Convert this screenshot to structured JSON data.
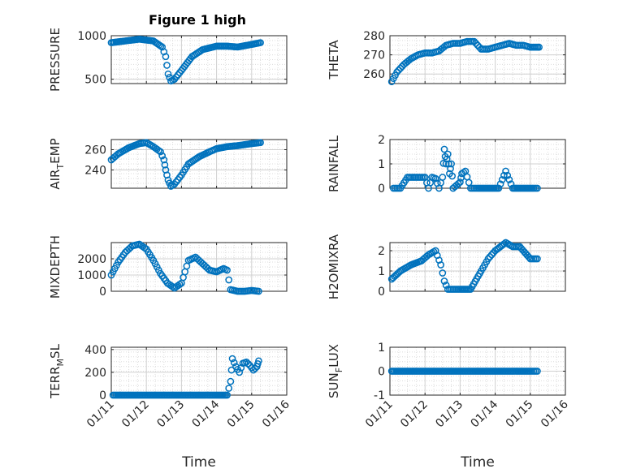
{
  "figure": {
    "title": "Figure 1 high"
  },
  "style": {
    "marker_color": "#0072bd",
    "axis_color": "#262626",
    "grid_color": "#dcdcdc"
  },
  "chart_data": [
    {
      "type": "scatter",
      "id": "pressure",
      "ylabel": "PRESSURE",
      "xlabel": "",
      "xlim": [
        "01/11",
        "01/16"
      ],
      "ylim": [
        450,
        1000
      ],
      "yticks": [
        500,
        1000
      ],
      "ytick_labels": [
        "500",
        "1000"
      ],
      "xticks": [
        "01/11",
        "01/12",
        "01/13",
        "01/14",
        "01/15",
        "01/16"
      ],
      "grid": true,
      "x": [
        11.0,
        11.8,
        12.2,
        12.45,
        12.55,
        12.62,
        12.7,
        12.8,
        13.0,
        13.3,
        13.6,
        14.0,
        14.3,
        14.6,
        15.0,
        15.25
      ],
      "y": [
        920,
        960,
        940,
        870,
        760,
        560,
        480,
        500,
        600,
        760,
        840,
        880,
        880,
        870,
        900,
        920
      ]
    },
    {
      "type": "scatter",
      "id": "theta",
      "ylabel": "THETA",
      "xlabel": "",
      "xlim": [
        "01/11",
        "01/16"
      ],
      "ylim": [
        255,
        280
      ],
      "yticks": [
        260,
        270,
        280
      ],
      "ytick_labels": [
        "260",
        "270",
        "280"
      ],
      "xticks": [
        "01/11",
        "01/12",
        "01/13",
        "01/14",
        "01/15",
        "01/16"
      ],
      "grid": true,
      "x": [
        11.05,
        11.2,
        11.4,
        11.6,
        11.8,
        12.0,
        12.2,
        12.4,
        12.6,
        12.8,
        13.0,
        13.2,
        13.4,
        13.6,
        13.8,
        14.0,
        14.2,
        14.4,
        14.6,
        14.8,
        15.0,
        15.25
      ],
      "y": [
        256,
        261,
        265,
        268,
        270,
        271,
        271,
        272,
        275,
        276,
        276,
        277,
        277,
        273,
        273,
        274,
        275,
        276,
        275,
        275,
        274,
        274
      ]
    },
    {
      "type": "scatter",
      "id": "air-temp",
      "ylabel": "AIR_TEMP",
      "xlabel": "",
      "xlim": [
        "01/11",
        "01/16"
      ],
      "ylim": [
        222,
        270
      ],
      "yticks": [
        240,
        260
      ],
      "ytick_labels": [
        "240",
        "260"
      ],
      "xticks": [
        "01/11",
        "01/12",
        "01/13",
        "01/14",
        "01/15",
        "01/16"
      ],
      "grid": true,
      "x": [
        11.0,
        11.2,
        11.5,
        11.8,
        12.0,
        12.2,
        12.4,
        12.5,
        12.55,
        12.62,
        12.7,
        12.8,
        13.0,
        13.2,
        13.5,
        13.8,
        14.0,
        14.3,
        14.6,
        15.0,
        15.25
      ],
      "y": [
        250,
        256,
        262,
        266,
        267,
        263,
        258,
        250,
        240,
        230,
        224,
        226,
        235,
        246,
        253,
        258,
        261,
        263,
        264,
        266,
        267
      ]
    },
    {
      "type": "scatter",
      "id": "rainfall",
      "ylabel": "RAINFALL",
      "xlabel": "",
      "xlim": [
        "01/11",
        "01/16"
      ],
      "ylim": [
        0,
        2
      ],
      "yticks": [
        0,
        1,
        2
      ],
      "ytick_labels": [
        "0",
        "1",
        "2"
      ],
      "xticks": [
        "01/11",
        "01/12",
        "01/13",
        "01/14",
        "01/15",
        "01/16"
      ],
      "grid": true,
      "x": [
        11.1,
        11.3,
        11.5,
        11.7,
        11.9,
        12.0,
        12.1,
        12.2,
        12.3,
        12.4,
        12.5,
        12.55,
        12.6,
        12.65,
        12.7,
        12.75,
        12.8,
        13.0,
        13.05,
        13.15,
        13.3,
        13.5,
        13.8,
        14.1,
        14.3,
        14.5,
        14.8,
        15.1,
        15.2
      ],
      "y": [
        0,
        0,
        0.45,
        0.45,
        0.45,
        0.45,
        0,
        0.45,
        0.4,
        0,
        0.45,
        1.6,
        1.0,
        1.4,
        0.6,
        1.0,
        0,
        0.25,
        0.6,
        0.7,
        0,
        0,
        0,
        0,
        0.7,
        0,
        0,
        0,
        0
      ]
    },
    {
      "type": "scatter",
      "id": "mixdepth",
      "ylabel": "MIXDEPTH",
      "xlabel": "",
      "xlim": [
        "01/11",
        "01/16"
      ],
      "ylim": [
        0,
        3000
      ],
      "yticks": [
        0,
        1000,
        2000
      ],
      "ytick_labels": [
        "0",
        "1000",
        "2000"
      ],
      "xticks": [
        "01/11",
        "01/12",
        "01/13",
        "01/14",
        "01/15",
        "01/16"
      ],
      "grid": true,
      "x": [
        11.0,
        11.2,
        11.4,
        11.6,
        11.8,
        12.0,
        12.2,
        12.4,
        12.6,
        12.8,
        13.0,
        13.2,
        13.4,
        13.6,
        13.8,
        14.0,
        14.2,
        14.3,
        14.4,
        14.6,
        14.8,
        15.0,
        15.2
      ],
      "y": [
        1000,
        1800,
        2400,
        2800,
        2900,
        2600,
        1900,
        1100,
        500,
        200,
        500,
        1900,
        2100,
        1700,
        1300,
        1200,
        1400,
        1300,
        100,
        0,
        0,
        50,
        0
      ]
    },
    {
      "type": "scatter",
      "id": "h2omixra",
      "ylabel": "H2OMIXRA",
      "xlabel": "",
      "xlim": [
        "01/11",
        "01/16"
      ],
      "ylim": [
        0,
        2.4
      ],
      "yticks": [
        0,
        1,
        2
      ],
      "ytick_labels": [
        "0",
        "1",
        "2"
      ],
      "xticks": [
        "01/11",
        "01/12",
        "01/13",
        "01/14",
        "01/15",
        "01/16"
      ],
      "grid": true,
      "x": [
        11.05,
        11.3,
        11.6,
        11.9,
        12.1,
        12.3,
        12.45,
        12.55,
        12.65,
        12.8,
        13.0,
        13.3,
        13.6,
        13.8,
        14.0,
        14.3,
        14.5,
        14.7,
        15.0,
        15.2
      ],
      "y": [
        0.6,
        1.0,
        1.3,
        1.5,
        1.8,
        2.0,
        1.3,
        0.5,
        0.1,
        0.1,
        0.1,
        0.1,
        1.0,
        1.6,
        2.0,
        2.4,
        2.2,
        2.2,
        1.6,
        1.6
      ]
    },
    {
      "type": "scatter",
      "id": "terr-msl",
      "ylabel": "TERR_MSL",
      "xlabel": "Time",
      "xlim": [
        "01/11",
        "01/16"
      ],
      "ylim": [
        0,
        420
      ],
      "yticks": [
        0,
        200,
        400
      ],
      "ytick_labels": [
        "0",
        "200",
        "400"
      ],
      "xticks": [
        "01/11",
        "01/12",
        "01/13",
        "01/14",
        "01/15",
        "01/16"
      ],
      "grid": true,
      "x": [
        11.05,
        11.5,
        12.0,
        12.5,
        13.0,
        13.5,
        14.0,
        14.3,
        14.4,
        14.45,
        14.55,
        14.65,
        14.75,
        14.85,
        14.95,
        15.05,
        15.15,
        15.2
      ],
      "y": [
        0,
        0,
        0,
        0,
        0,
        0,
        0,
        0,
        120,
        320,
        250,
        200,
        280,
        290,
        260,
        220,
        250,
        300
      ]
    },
    {
      "type": "scatter",
      "id": "sun-flux",
      "ylabel": "SUN_FLUX",
      "xlabel": "Time",
      "xlim": [
        "01/11",
        "01/16"
      ],
      "ylim": [
        -1,
        1
      ],
      "yticks": [
        -1,
        0,
        1
      ],
      "ytick_labels": [
        "-1",
        "0",
        "1"
      ],
      "xticks": [
        "01/11",
        "01/12",
        "01/13",
        "01/14",
        "01/15",
        "01/16"
      ],
      "grid": true,
      "x": [
        11.05,
        11.5,
        12.0,
        12.5,
        13.0,
        13.5,
        14.0,
        14.5,
        15.0,
        15.2
      ],
      "y": [
        0,
        0,
        0,
        0,
        0,
        0,
        0,
        0,
        0,
        0
      ]
    }
  ]
}
